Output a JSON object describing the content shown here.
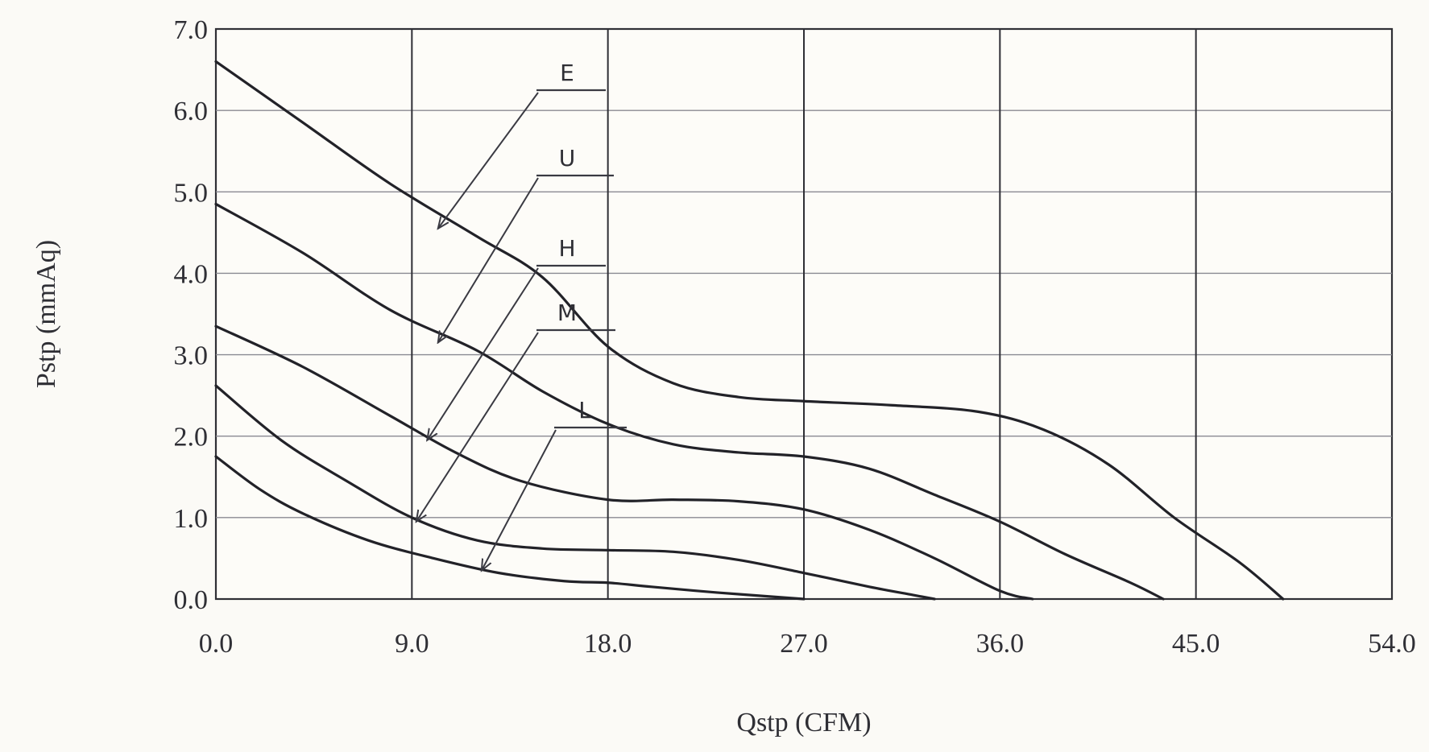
{
  "chart_data": {
    "type": "line",
    "xlabel": "Qstp (CFM)",
    "ylabel": "Pstp (mmAq)",
    "xlim": [
      0,
      54
    ],
    "ylim": [
      0,
      7
    ],
    "x_ticks": [
      "0.0",
      "9.0",
      "18.0",
      "27.0",
      "36.0",
      "45.0",
      "54.0"
    ],
    "y_ticks": [
      "0.0",
      "1.0",
      "2.0",
      "3.0",
      "4.0",
      "5.0",
      "6.0",
      "7.0"
    ],
    "grid": true,
    "legend": "none",
    "series": [
      {
        "name": "E",
        "points": [
          [
            0,
            6.6
          ],
          [
            4,
            5.85
          ],
          [
            8,
            5.1
          ],
          [
            12,
            4.45
          ],
          [
            15,
            3.95
          ],
          [
            18,
            3.1
          ],
          [
            21,
            2.65
          ],
          [
            24,
            2.48
          ],
          [
            27,
            2.43
          ],
          [
            31,
            2.38
          ],
          [
            35,
            2.3
          ],
          [
            38,
            2.08
          ],
          [
            41,
            1.65
          ],
          [
            44,
            1.0
          ],
          [
            47,
            0.45
          ],
          [
            49,
            0.0
          ]
        ]
      },
      {
        "name": "U",
        "points": [
          [
            0,
            4.85
          ],
          [
            4,
            4.25
          ],
          [
            8,
            3.55
          ],
          [
            12,
            3.05
          ],
          [
            15,
            2.55
          ],
          [
            18,
            2.15
          ],
          [
            21,
            1.9
          ],
          [
            24,
            1.8
          ],
          [
            27,
            1.75
          ],
          [
            30,
            1.6
          ],
          [
            33,
            1.28
          ],
          [
            36,
            0.95
          ],
          [
            39,
            0.55
          ],
          [
            42,
            0.2
          ],
          [
            43.5,
            0.0
          ]
        ]
      },
      {
        "name": "H",
        "points": [
          [
            0,
            3.35
          ],
          [
            4,
            2.85
          ],
          [
            8,
            2.25
          ],
          [
            11,
            1.8
          ],
          [
            14,
            1.45
          ],
          [
            18,
            1.22
          ],
          [
            21,
            1.22
          ],
          [
            24,
            1.2
          ],
          [
            27,
            1.1
          ],
          [
            30,
            0.85
          ],
          [
            33,
            0.5
          ],
          [
            36,
            0.1
          ],
          [
            37.5,
            0.0
          ]
        ]
      },
      {
        "name": "M",
        "points": [
          [
            0,
            2.62
          ],
          [
            3,
            1.95
          ],
          [
            6,
            1.45
          ],
          [
            9,
            1.0
          ],
          [
            12,
            0.72
          ],
          [
            15,
            0.62
          ],
          [
            18,
            0.6
          ],
          [
            21,
            0.58
          ],
          [
            24,
            0.48
          ],
          [
            27,
            0.32
          ],
          [
            30,
            0.15
          ],
          [
            32,
            0.05
          ],
          [
            33,
            0.0
          ]
        ]
      },
      {
        "name": "L",
        "points": [
          [
            0,
            1.75
          ],
          [
            2,
            1.35
          ],
          [
            4,
            1.05
          ],
          [
            7,
            0.72
          ],
          [
            10,
            0.5
          ],
          [
            13,
            0.32
          ],
          [
            16,
            0.22
          ],
          [
            18,
            0.2
          ],
          [
            20,
            0.15
          ],
          [
            23,
            0.08
          ],
          [
            26,
            0.02
          ],
          [
            27,
            0.0
          ]
        ]
      }
    ],
    "annotations": [
      {
        "label": "E",
        "target": [
          10.2,
          4.55
        ]
      },
      {
        "label": "U",
        "target": [
          10.2,
          3.15
        ]
      },
      {
        "label": "H",
        "target": [
          9.7,
          1.95
        ]
      },
      {
        "label": "M",
        "target": [
          9.2,
          0.95
        ]
      },
      {
        "label": "L",
        "target": [
          12.2,
          0.35
        ]
      }
    ]
  }
}
